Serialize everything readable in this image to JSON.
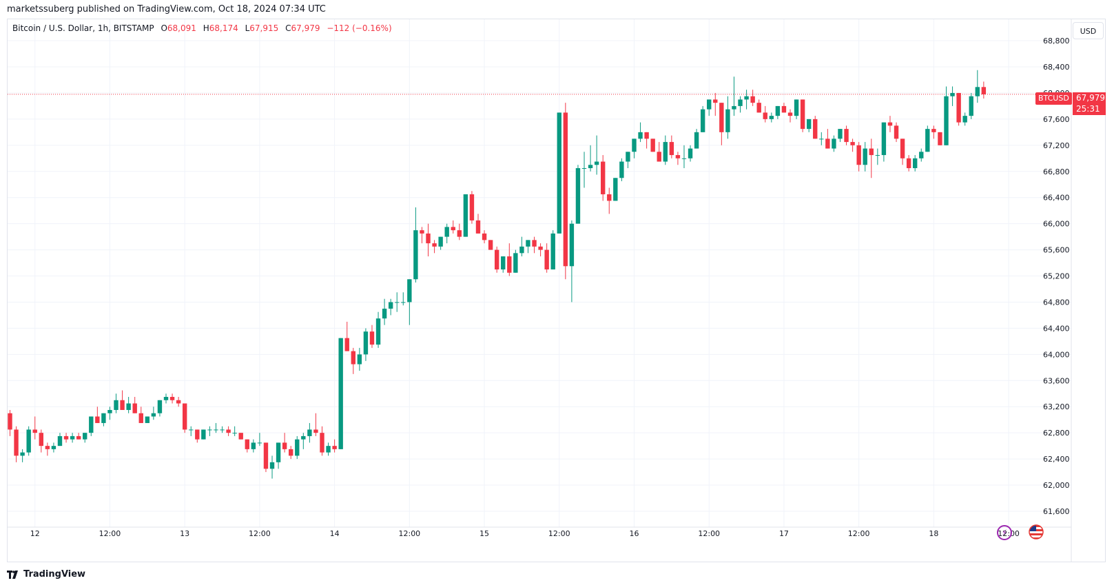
{
  "header": {
    "published_by": "marketssuberg published on TradingView.com, Oct 18, 2024 07:34 UTC"
  },
  "legend": {
    "symbol": "Bitcoin / U.S. Dollar, 1h, BITSTAMP",
    "o_label": "O",
    "o_value": "68,091",
    "h_label": "H",
    "h_value": "68,174",
    "l_label": "L",
    "l_value": "67,915",
    "c_label": "C",
    "c_value": "67,979",
    "change": "−112 (−0.16%)"
  },
  "currency": "USD",
  "price_tag": {
    "symbol": "BTCUSD",
    "price": "67,979",
    "countdown": "25:31"
  },
  "footer": {
    "brand": "TradingView"
  },
  "colors": {
    "up": "#089981",
    "down": "#f23645",
    "grid": "#f0f3fa",
    "text": "#131722",
    "icon_purple": "#9c27b0"
  },
  "icons": [
    "lightning-icon",
    "us-flag-icon",
    "tradingview-logo-icon"
  ],
  "chart_data": {
    "type": "candlestick",
    "symbol": "BTCUSD",
    "interval": "1h",
    "ylim": [
      61500,
      68850
    ],
    "current_price": 67979,
    "y_ticks": [
      61600,
      62000,
      62400,
      62800,
      63200,
      63600,
      64000,
      64400,
      64800,
      65200,
      65600,
      66000,
      66400,
      66800,
      67200,
      67600,
      68000,
      68400,
      68800
    ],
    "y_tick_labels": [
      "61,600",
      "62,000",
      "62,400",
      "62,800",
      "63,200",
      "63,600",
      "64,000",
      "64,400",
      "64,800",
      "65,200",
      "65,600",
      "66,000",
      "66,400",
      "66,800",
      "67,200",
      "67,600",
      "68,000",
      "68,400",
      "68,800"
    ],
    "x_ticks": [
      {
        "bar": 4,
        "label": "12"
      },
      {
        "bar": 16,
        "label": "12:00"
      },
      {
        "bar": 28,
        "label": "13"
      },
      {
        "bar": 40,
        "label": "12:00"
      },
      {
        "bar": 52,
        "label": "14"
      },
      {
        "bar": 64,
        "label": "12:00"
      },
      {
        "bar": 76,
        "label": "15"
      },
      {
        "bar": 88,
        "label": "12:00"
      },
      {
        "bar": 100,
        "label": "16"
      },
      {
        "bar": 112,
        "label": "12:00"
      },
      {
        "bar": 124,
        "label": "17"
      },
      {
        "bar": 136,
        "label": "12:00"
      },
      {
        "bar": 148,
        "label": "18"
      },
      {
        "bar": 160,
        "label": "12:00"
      }
    ],
    "ohlc": [
      [
        63100,
        63150,
        62750,
        62850
      ],
      [
        62850,
        62900,
        62350,
        62450
      ],
      [
        62450,
        62550,
        62350,
        62500
      ],
      [
        62500,
        62900,
        62450,
        62850
      ],
      [
        62850,
        63050,
        62700,
        62800
      ],
      [
        62800,
        62850,
        62500,
        62600
      ],
      [
        62600,
        62650,
        62450,
        62550
      ],
      [
        62550,
        62650,
        62500,
        62600
      ],
      [
        62600,
        62800,
        62600,
        62750
      ],
      [
        62750,
        62800,
        62650,
        62700
      ],
      [
        62700,
        62800,
        62650,
        62750
      ],
      [
        62750,
        62800,
        62700,
        62700
      ],
      [
        62700,
        62800,
        62650,
        62800
      ],
      [
        62800,
        63050,
        62750,
        63050
      ],
      [
        63050,
        63200,
        62950,
        62950
      ],
      [
        62950,
        63100,
        62900,
        63100
      ],
      [
        63100,
        63200,
        63000,
        63150
      ],
      [
        63150,
        63400,
        63100,
        63300
      ],
      [
        63300,
        63450,
        63150,
        63150
      ],
      [
        63150,
        63350,
        63100,
        63250
      ],
      [
        63250,
        63350,
        63100,
        63100
      ],
      [
        63100,
        63200,
        62950,
        62950
      ],
      [
        62950,
        63050,
        62950,
        63050
      ],
      [
        63050,
        63200,
        63000,
        63100
      ],
      [
        63100,
        63300,
        63050,
        63300
      ],
      [
        63300,
        63400,
        63250,
        63350
      ],
      [
        63350,
        63400,
        63250,
        63300
      ],
      [
        63300,
        63350,
        63200,
        63250
      ],
      [
        63250,
        63250,
        62800,
        62850
      ],
      [
        62850,
        62900,
        62750,
        62850
      ],
      [
        62850,
        62850,
        62650,
        62700
      ],
      [
        62700,
        62850,
        62700,
        62850
      ],
      [
        62850,
        62900,
        62750,
        62850
      ],
      [
        62850,
        62950,
        62800,
        62850
      ],
      [
        62850,
        62900,
        62800,
        62850
      ],
      [
        62850,
        62900,
        62750,
        62800
      ],
      [
        62800,
        62900,
        62750,
        62800
      ],
      [
        62800,
        62800,
        62700,
        62700
      ],
      [
        62700,
        62700,
        62500,
        62550
      ],
      [
        62550,
        62700,
        62500,
        62650
      ],
      [
        62650,
        62800,
        62600,
        62650
      ],
      [
        62650,
        62650,
        62200,
        62250
      ],
      [
        62250,
        62450,
        62100,
        62350
      ],
      [
        62350,
        62650,
        62250,
        62650
      ],
      [
        62650,
        62800,
        62500,
        62550
      ],
      [
        62550,
        62600,
        62400,
        62450
      ],
      [
        62450,
        62750,
        62400,
        62700
      ],
      [
        62700,
        62800,
        62550,
        62750
      ],
      [
        62750,
        62950,
        62650,
        62850
      ],
      [
        62850,
        63100,
        62750,
        62800
      ],
      [
        62800,
        62900,
        62450,
        62500
      ],
      [
        62500,
        62650,
        62450,
        62600
      ],
      [
        62600,
        62700,
        62500,
        62550
      ],
      [
        62550,
        64250,
        62550,
        64250
      ],
      [
        64250,
        64500,
        64050,
        64050
      ],
      [
        64050,
        64100,
        63700,
        63850
      ],
      [
        63850,
        64100,
        63750,
        64000
      ],
      [
        64000,
        64400,
        63900,
        64350
      ],
      [
        64350,
        64450,
        64100,
        64150
      ],
      [
        64150,
        64650,
        64100,
        64550
      ],
      [
        64550,
        64850,
        64450,
        64700
      ],
      [
        64700,
        64850,
        64600,
        64800
      ],
      [
        64800,
        64950,
        64650,
        64800
      ],
      [
        64800,
        64950,
        64750,
        64800
      ],
      [
        64800,
        65150,
        64450,
        65150
      ],
      [
        65150,
        66250,
        65100,
        65900
      ],
      [
        65900,
        65950,
        65700,
        65850
      ],
      [
        65850,
        66000,
        65500,
        65700
      ],
      [
        65700,
        65750,
        65550,
        65650
      ],
      [
        65650,
        65800,
        65600,
        65800
      ],
      [
        65800,
        66000,
        65700,
        65950
      ],
      [
        65950,
        66050,
        65850,
        65900
      ],
      [
        65900,
        66000,
        65750,
        65800
      ],
      [
        65800,
        66450,
        65800,
        66450
      ],
      [
        66450,
        66500,
        66000,
        66050
      ],
      [
        66050,
        66150,
        65850,
        65850
      ],
      [
        65850,
        65900,
        65700,
        65750
      ],
      [
        65750,
        65750,
        65600,
        65600
      ],
      [
        65600,
        65650,
        65250,
        65300
      ],
      [
        65300,
        65500,
        65250,
        65500
      ],
      [
        65500,
        65700,
        65200,
        65250
      ],
      [
        65250,
        65600,
        65250,
        65550
      ],
      [
        65550,
        65800,
        65500,
        65650
      ],
      [
        65650,
        65750,
        65550,
        65750
      ],
      [
        65750,
        65800,
        65550,
        65650
      ],
      [
        65650,
        65700,
        65500,
        65600
      ],
      [
        65600,
        65700,
        65250,
        65300
      ],
      [
        65300,
        65900,
        65300,
        65850
      ],
      [
        65850,
        67700,
        65850,
        67700
      ],
      [
        67700,
        67850,
        65150,
        65350
      ],
      [
        65350,
        66050,
        64800,
        66000
      ],
      [
        66000,
        66900,
        66000,
        66850
      ],
      [
        66850,
        67100,
        66550,
        66850
      ],
      [
        66850,
        67200,
        66800,
        66900
      ],
      [
        66900,
        67350,
        66750,
        66950
      ],
      [
        66950,
        67050,
        66350,
        66450
      ],
      [
        66450,
        66550,
        66150,
        66350
      ],
      [
        66350,
        66700,
        66350,
        66700
      ],
      [
        66700,
        67000,
        66650,
        66950
      ],
      [
        66950,
        67100,
        66850,
        67100
      ],
      [
        67100,
        67300,
        67000,
        67300
      ],
      [
        67300,
        67550,
        67250,
        67400
      ],
      [
        67400,
        67400,
        67150,
        67300
      ],
      [
        67300,
        67300,
        67100,
        67100
      ],
      [
        67100,
        67250,
        66950,
        66950
      ],
      [
        66950,
        67350,
        66900,
        67250
      ],
      [
        67250,
        67350,
        67000,
        67050
      ],
      [
        67050,
        67100,
        66900,
        67000
      ],
      [
        67000,
        67200,
        66850,
        67000
      ],
      [
        67000,
        67200,
        66950,
        67150
      ],
      [
        67150,
        67450,
        67150,
        67400
      ],
      [
        67400,
        67800,
        67400,
        67750
      ],
      [
        67750,
        67900,
        67650,
        67900
      ],
      [
        67900,
        68000,
        67650,
        67850
      ],
      [
        67850,
        67850,
        67200,
        67400
      ],
      [
        67400,
        67950,
        67300,
        67750
      ],
      [
        67750,
        68250,
        67650,
        67800
      ],
      [
        67800,
        67950,
        67700,
        67900
      ],
      [
        67900,
        68050,
        67750,
        67950
      ],
      [
        67950,
        68050,
        67800,
        67850
      ],
      [
        67850,
        67900,
        67700,
        67700
      ],
      [
        67700,
        67800,
        67550,
        67600
      ],
      [
        67600,
        67700,
        67550,
        67650
      ],
      [
        67650,
        67800,
        67600,
        67800
      ],
      [
        67800,
        67850,
        67700,
        67700
      ],
      [
        67700,
        67750,
        67550,
        67650
      ],
      [
        67650,
        67900,
        67600,
        67900
      ],
      [
        67900,
        67900,
        67400,
        67450
      ],
      [
        67450,
        67600,
        67400,
        67600
      ],
      [
        67600,
        67650,
        67300,
        67300
      ],
      [
        67300,
        67400,
        67200,
        67300
      ],
      [
        67300,
        67450,
        67150,
        67150
      ],
      [
        67150,
        67350,
        67100,
        67300
      ],
      [
        67300,
        67450,
        67250,
        67450
      ],
      [
        67450,
        67500,
        67200,
        67250
      ],
      [
        67250,
        67300,
        67100,
        67200
      ],
      [
        67200,
        67250,
        66800,
        66900
      ],
      [
        66900,
        67250,
        66800,
        67150
      ],
      [
        67150,
        67300,
        66700,
        67050
      ],
      [
        67050,
        67150,
        66900,
        67050
      ],
      [
        67050,
        67550,
        66950,
        67550
      ],
      [
        67550,
        67650,
        67400,
        67500
      ],
      [
        67500,
        67550,
        67250,
        67300
      ],
      [
        67300,
        67300,
        66900,
        67000
      ],
      [
        67000,
        67050,
        66800,
        66850
      ],
      [
        66850,
        67050,
        66800,
        67000
      ],
      [
        67000,
        67150,
        66950,
        67100
      ],
      [
        67100,
        67500,
        67100,
        67450
      ],
      [
        67450,
        67500,
        67300,
        67400
      ],
      [
        67400,
        67400,
        67200,
        67200
      ],
      [
        67200,
        68100,
        67200,
        67950
      ],
      [
        67950,
        68100,
        67800,
        68000
      ],
      [
        68000,
        68000,
        67500,
        67550
      ],
      [
        67550,
        67700,
        67500,
        67650
      ],
      [
        67650,
        68000,
        67600,
        67950
      ],
      [
        67950,
        68350,
        67850,
        68091
      ],
      [
        68091,
        68174,
        67915,
        67979
      ]
    ]
  }
}
